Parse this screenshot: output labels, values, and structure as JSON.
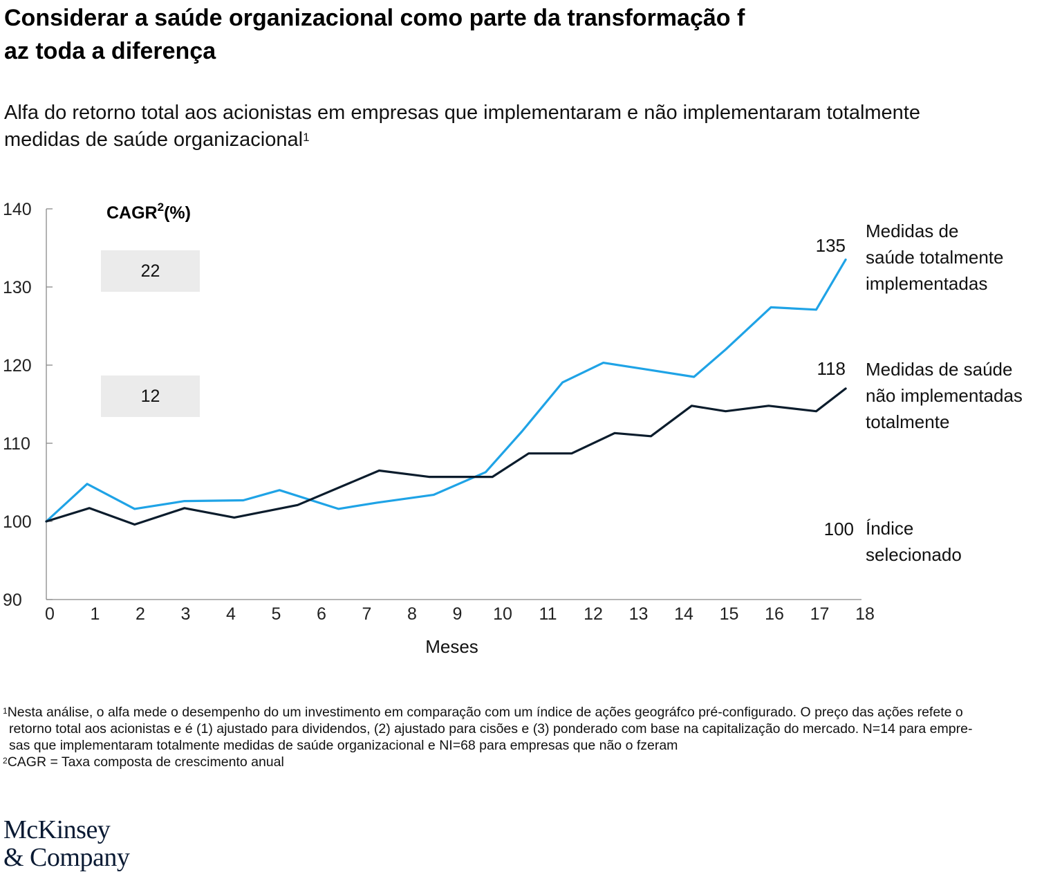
{
  "title_line1": "Considerar a saúde organizacional como parte da transformação f",
  "title_line2": "az toda a diferença",
  "subtitle_line1": "Alfa do retorno total aos acionistas em empresas que implementaram e não implementaram totalmente",
  "subtitle_line2": "medidas de saúde organizacional",
  "subtitle_sup": "1",
  "cagr_header": "CAGR",
  "cagr_sup": "2",
  "cagr_suffix": "(%)",
  "cagr_values": [
    "22",
    "12"
  ],
  "end_labels": [
    "135",
    "118",
    "100"
  ],
  "legend": {
    "full": [
      "Medidas de",
      "saúde totalmente",
      "implementadas"
    ],
    "partial": [
      "Medidas de saúde",
      "não implementadas",
      "totalmente"
    ],
    "index": [
      "Índice",
      "selecionado"
    ]
  },
  "footnotes": {
    "n1_mark": "1",
    "n1_line1": "Nesta análise, o alfa mede o desempenho do um investimento em comparação com um índice de ações geográfco pré-configurado. O preço das ações refete o",
    "n1_line2": "retorno total aos acionistas e é (1) ajustado para dividendos, (2) ajustado para cisões e (3) ponderado com base na capitalização do mercado. N=14 para empre-",
    "n1_line3": "sas que implementaram totalmente medidas de saúde organizacional e NI=68 para empresas que não o fzeram",
    "n2_mark": "2",
    "n2_text": "CAGR = Taxa composta de crescimento anual"
  },
  "logo_line1": "McKinsey",
  "logo_line2": "& Company",
  "colors": {
    "full": "#1fa3e6",
    "partial": "#0b1c2c",
    "axis": "#888888"
  },
  "chart_data": {
    "type": "line",
    "xlabel": "Meses",
    "ylabel": "",
    "ylim": [
      90,
      140
    ],
    "xlim": [
      0,
      18
    ],
    "yticks": [
      90,
      100,
      110,
      120,
      130,
      140
    ],
    "xticks": [
      0,
      1,
      2,
      3,
      4,
      5,
      6,
      7,
      8,
      9,
      10,
      11,
      12,
      13,
      14,
      15,
      16,
      17,
      18
    ],
    "series": [
      {
        "name": "Medidas de saúde totalmente implementadas",
        "color": "#1fa3e6",
        "x": [
          0,
          0.9,
          1.95,
          3.05,
          4.35,
          5.15,
          6.45,
          7.3,
          8.55,
          9.7,
          10.5,
          11.4,
          12.3,
          13.2,
          14.3,
          15.0,
          16.0,
          17.0,
          17.65
        ],
        "y": [
          100,
          104.8,
          101.6,
          102.6,
          102.7,
          104.0,
          101.6,
          102.4,
          103.4,
          106.3,
          111.5,
          117.8,
          120.3,
          119.5,
          118.5,
          122.0,
          127.4,
          127.1,
          133.5
        ]
      },
      {
        "name": "Medidas de saúde não implementadas totalmente",
        "color": "#0b1c2c",
        "x": [
          0,
          0.95,
          1.95,
          3.05,
          4.15,
          5.55,
          7.35,
          8.45,
          9.85,
          10.65,
          11.6,
          12.55,
          13.35,
          14.25,
          15.0,
          15.95,
          17.0,
          17.65
        ],
        "y": [
          100,
          101.7,
          99.6,
          101.7,
          100.5,
          102.1,
          106.5,
          105.7,
          105.7,
          108.7,
          108.7,
          111.3,
          110.9,
          114.8,
          114.1,
          114.8,
          114.1,
          117.0
        ]
      }
    ],
    "end_values": [
      135,
      118,
      100
    ],
    "cagr_percent": [
      22,
      12
    ]
  }
}
